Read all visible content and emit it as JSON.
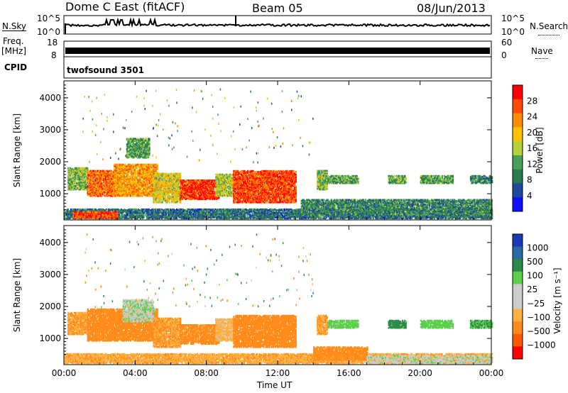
{
  "header": {
    "station": "Dome C East (fitACF)",
    "beam": "Beam 05",
    "date": "08/Jun/2013"
  },
  "strip_labels": {
    "nsky": "N.Sky",
    "nsky_ticks": [
      "10^5",
      "10^0"
    ],
    "nsearch": "N.Search",
    "nsearch_ticks": [
      "10^5",
      "10^0"
    ],
    "freq": "Freq.",
    "freq_unit": "[MHz]",
    "freq_ticks": [
      "18",
      "8"
    ],
    "nave": "Nave",
    "nave_ticks": [
      "60",
      "0"
    ],
    "cpid": "CPID",
    "cpid_value": "twofsound 3501"
  },
  "colors": {
    "power_scale": [
      "#1010ff",
      "#1f48a0",
      "#2a7a50",
      "#4aa05a",
      "#b5d23a",
      "#ffc000",
      "#ff8c00",
      "#ff4a00",
      "#ff0000"
    ],
    "velocity_scale": [
      "#ff0000",
      "#ff5a00",
      "#ff8c1a",
      "#ffb040",
      "#cccccc",
      "#cccccc",
      "#5ad04a",
      "#2e8a4a",
      "#2a6aa0",
      "#1a3ab8"
    ]
  },
  "chart_data": [
    {
      "type": "heatmap",
      "panel": "power",
      "xlabel": "",
      "ylabel": "Slant Range [km]",
      "x_ticks": [
        "00:00",
        "04:00",
        "08:00",
        "12:00",
        "16:00",
        "20:00",
        "00:00"
      ],
      "xlim_hours": [
        0,
        24
      ],
      "y_ticks": [
        1000,
        2000,
        3000,
        4000
      ],
      "ylim": [
        180,
        4530
      ],
      "colorbar_label": "Power [dB]",
      "colorbar_ticks": [
        "28",
        "24",
        "20",
        "16",
        "12",
        "8",
        "4"
      ],
      "colorbar_range": [
        0,
        32
      ],
      "regions": [
        {
          "t0": 0.2,
          "t1": 1.3,
          "r0": 1100,
          "r1": 1800,
          "val": 14
        },
        {
          "t0": 1.3,
          "t1": 3.3,
          "r0": 900,
          "r1": 1700,
          "val": 25
        },
        {
          "t0": 2.8,
          "t1": 5.2,
          "r0": 900,
          "r1": 1900,
          "val": 22
        },
        {
          "t0": 5.0,
          "t1": 6.5,
          "r0": 700,
          "r1": 1600,
          "val": 18
        },
        {
          "t0": 6.5,
          "t1": 8.7,
          "r0": 800,
          "r1": 1400,
          "val": 28
        },
        {
          "t0": 8.5,
          "t1": 9.5,
          "r0": 900,
          "r1": 1600,
          "val": 16
        },
        {
          "t0": 9.5,
          "t1": 13.0,
          "r0": 700,
          "r1": 1700,
          "val": 27
        },
        {
          "t0": 14.2,
          "t1": 14.8,
          "r0": 1100,
          "r1": 1700,
          "val": 14
        },
        {
          "t0": 14.8,
          "t1": 16.5,
          "r0": 1300,
          "r1": 1550,
          "val": 12
        },
        {
          "t0": 18.2,
          "t1": 19.2,
          "r0": 1300,
          "r1": 1550,
          "val": 13
        },
        {
          "t0": 20.0,
          "t1": 21.8,
          "r0": 1300,
          "r1": 1550,
          "val": 12
        },
        {
          "t0": 22.8,
          "t1": 24.0,
          "r0": 1300,
          "r1": 1550,
          "val": 10
        },
        {
          "t0": 3.5,
          "t1": 4.8,
          "r0": 2100,
          "r1": 2700,
          "val": 12
        },
        {
          "t0": 0.0,
          "t1": 24.0,
          "r0": 200,
          "r1": 500,
          "val": 8
        },
        {
          "t0": 0.5,
          "t1": 3.0,
          "r0": 200,
          "r1": 400,
          "val": 27
        },
        {
          "t0": 13.3,
          "t1": 24.0,
          "r0": 300,
          "r1": 800,
          "val": 10
        }
      ]
    },
    {
      "type": "heatmap",
      "panel": "velocity",
      "xlabel": "Time UT",
      "ylabel": "Slant Range [km]",
      "x_ticks": [
        "00:00",
        "04:00",
        "08:00",
        "12:00",
        "16:00",
        "20:00",
        "00:00"
      ],
      "xlim_hours": [
        0,
        24
      ],
      "y_ticks": [
        1000,
        2000,
        3000,
        4000
      ],
      "ylim": [
        180,
        4530
      ],
      "colorbar_label": "Velocity [m s⁻¹]",
      "colorbar_ticks": [
        "1000",
        "500",
        "100",
        "25",
        "−25",
        "−100",
        "−500",
        "−1000"
      ],
      "regions": [
        {
          "t0": 0.2,
          "t1": 1.3,
          "r0": 1100,
          "r1": 1800,
          "val": -100
        },
        {
          "t0": 1.3,
          "t1": 5.2,
          "r0": 900,
          "r1": 1900,
          "val": -300
        },
        {
          "t0": 3.3,
          "t1": 5.0,
          "r0": 1500,
          "r1": 2200,
          "val": 10
        },
        {
          "t0": 5.0,
          "t1": 6.5,
          "r0": 700,
          "r1": 1600,
          "val": -100
        },
        {
          "t0": 6.5,
          "t1": 8.7,
          "r0": 800,
          "r1": 1400,
          "val": -200
        },
        {
          "t0": 8.5,
          "t1": 9.5,
          "r0": 900,
          "r1": 1600,
          "val": -50
        },
        {
          "t0": 9.5,
          "t1": 13.0,
          "r0": 700,
          "r1": 1700,
          "val": -250
        },
        {
          "t0": 14.2,
          "t1": 14.8,
          "r0": 1100,
          "r1": 1700,
          "val": -100
        },
        {
          "t0": 14.8,
          "t1": 16.5,
          "r0": 1300,
          "r1": 1550,
          "val": 60
        },
        {
          "t0": 18.2,
          "t1": 19.2,
          "r0": 1300,
          "r1": 1550,
          "val": 200
        },
        {
          "t0": 20.0,
          "t1": 21.8,
          "r0": 1300,
          "r1": 1550,
          "val": 60
        },
        {
          "t0": 22.8,
          "t1": 24.0,
          "r0": 1300,
          "r1": 1550,
          "val": 100
        },
        {
          "t0": 0.0,
          "t1": 24.0,
          "r0": 200,
          "r1": 500,
          "val": -80
        },
        {
          "t0": 14.0,
          "t1": 17.0,
          "r0": 300,
          "r1": 700,
          "val": -200
        },
        {
          "t0": 17.0,
          "t1": 24.0,
          "r0": 200,
          "r1": 450,
          "val": 0
        }
      ]
    }
  ]
}
